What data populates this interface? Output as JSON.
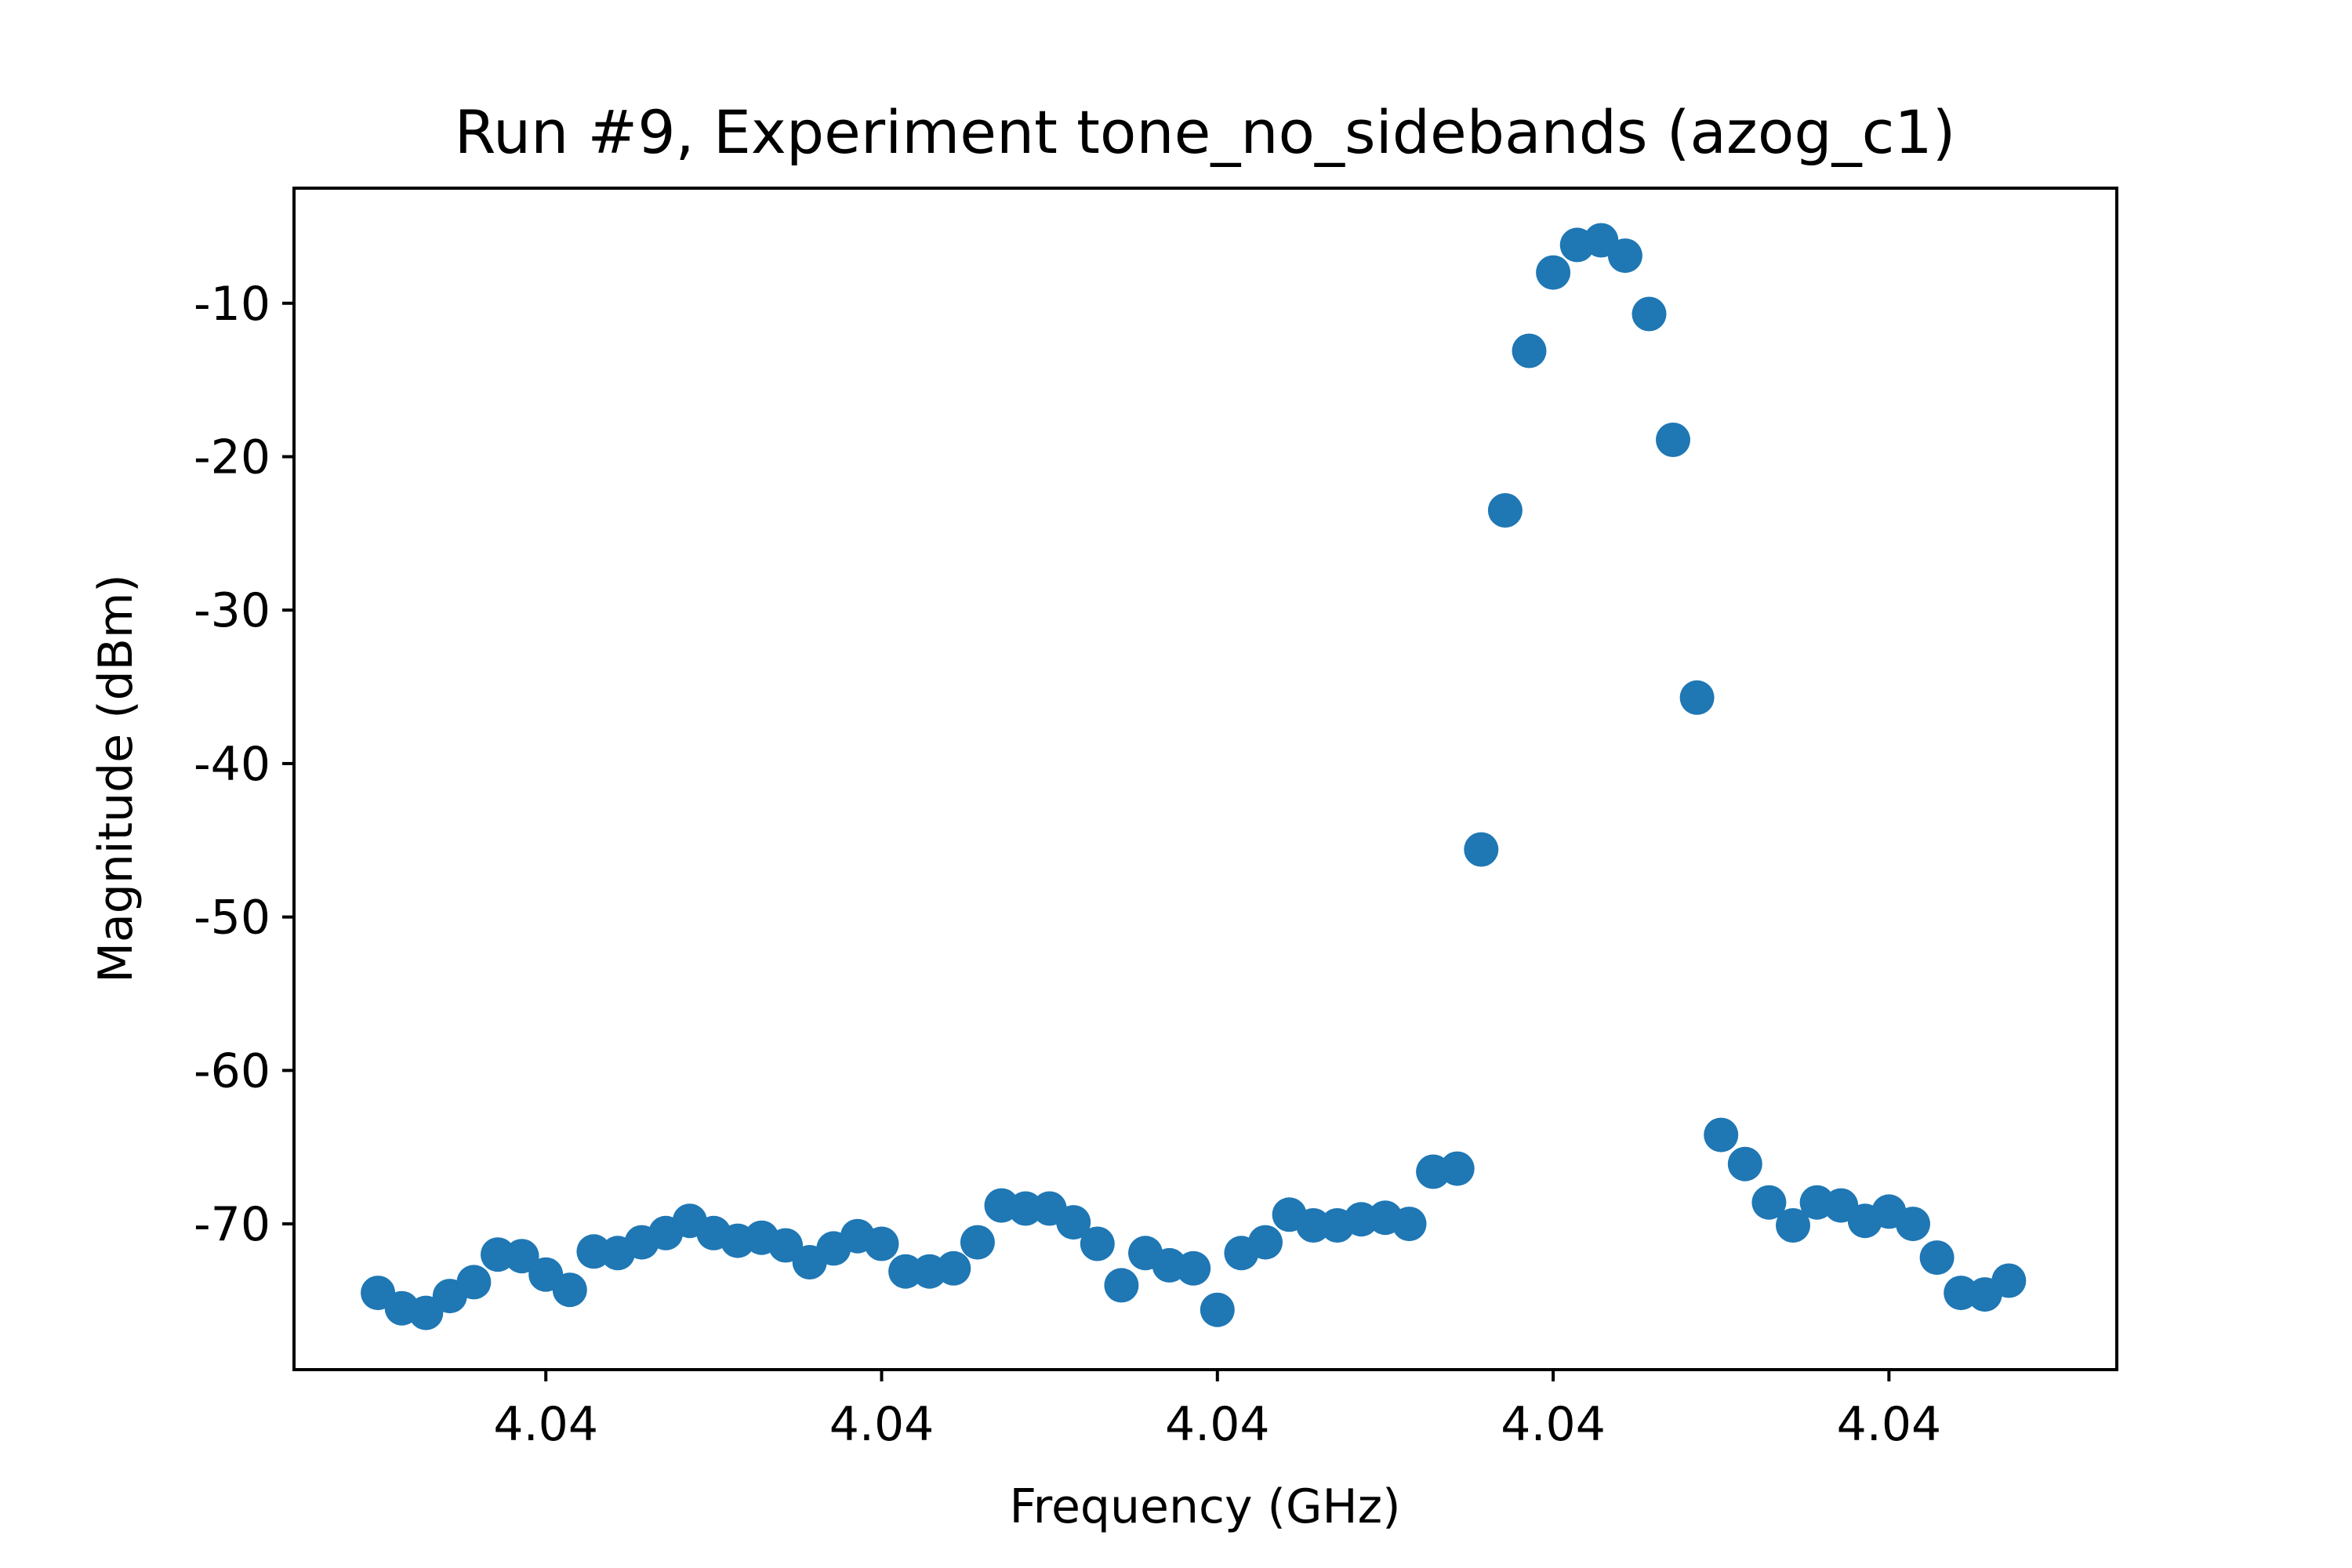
{
  "chart_data": {
    "type": "scatter",
    "title": "Run #9, Experiment tone_no_sidebands (azog_c1)",
    "xlabel": "Frequency (GHz)",
    "ylabel": "Magnitude (dBm)",
    "xlim": [
      -3.5,
      72.5
    ],
    "ylim": [
      -79.5,
      -2.5
    ],
    "grid": false,
    "legend": "none",
    "color": "#1f77b4",
    "xticks": [
      {
        "value": 7,
        "label": "4.04"
      },
      {
        "value": 21,
        "label": "4.04"
      },
      {
        "value": 35,
        "label": "4.04"
      },
      {
        "value": 49,
        "label": "4.04"
      },
      {
        "value": 63,
        "label": "4.04"
      }
    ],
    "yticks": [
      {
        "value": -10,
        "label": "-10"
      },
      {
        "value": -20,
        "label": "-20"
      },
      {
        "value": -30,
        "label": "-30"
      },
      {
        "value": -40,
        "label": "-40"
      },
      {
        "value": -50,
        "label": "-50"
      },
      {
        "value": -60,
        "label": "-60"
      },
      {
        "value": -70,
        "label": "-70"
      }
    ],
    "series": [
      {
        "values": [
          -74.5,
          -75.5,
          -75.8,
          -74.7,
          -73.8,
          -72.0,
          -72.1,
          -73.3,
          -74.3,
          -71.8,
          -71.9,
          -71.2,
          -70.6,
          -69.8,
          -70.6,
          -71.1,
          -70.9,
          -71.4,
          -72.5,
          -71.6,
          -70.8,
          -71.3,
          -73.1,
          -73.1,
          -72.9,
          -71.2,
          -68.8,
          -69.0,
          -69.0,
          -69.9,
          -71.3,
          -74.0,
          -71.9,
          -72.7,
          -72.9,
          -75.6,
          -71.9,
          -71.2,
          -69.4,
          -70.1,
          -70.1,
          -69.7,
          -69.6,
          -70.0,
          -66.6,
          -66.4,
          -45.6,
          -23.5,
          -13.1,
          -8.0,
          -6.2,
          -5.9,
          -6.9,
          -10.7,
          -18.9,
          -35.7,
          -64.2,
          -66.1,
          -68.6,
          -70.1,
          -68.6,
          -68.8,
          -69.8,
          -69.2,
          -70.0,
          -72.2,
          -74.5,
          -74.6,
          -73.7
        ]
      }
    ]
  }
}
